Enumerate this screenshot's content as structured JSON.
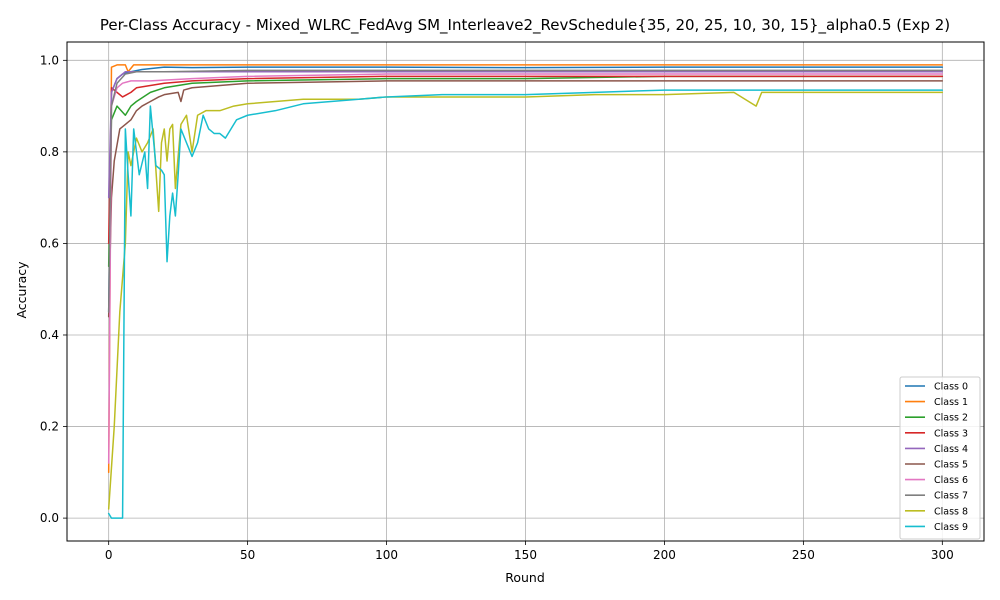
{
  "chart_data": {
    "type": "line",
    "title": "Per-Class Accuracy - Mixed_WLRC_FedAvg SM_Interleave2_RevSchedule{35, 20, 25, 10, 30, 15}_alpha0.5 (Exp 2)",
    "xlabel": "Round",
    "ylabel": "Accuracy",
    "xlim": [
      -15,
      315
    ],
    "ylim": [
      -0.05,
      1.04
    ],
    "xticks": [
      0,
      50,
      100,
      150,
      200,
      250,
      300
    ],
    "yticks": [
      0.0,
      0.2,
      0.4,
      0.6,
      0.8,
      1.0
    ],
    "xtick_labels": [
      "0",
      "50",
      "100",
      "150",
      "200",
      "250",
      "300"
    ],
    "ytick_labels": [
      "0.0",
      "0.2",
      "0.4",
      "0.6",
      "0.8",
      "1.0"
    ],
    "grid": true,
    "legend_position": "lower-right",
    "series": [
      {
        "name": "Class 0",
        "color": "#1f77b4",
        "points": [
          [
            0,
            0.45
          ],
          [
            1,
            0.93
          ],
          [
            3,
            0.96
          ],
          [
            5,
            0.97
          ],
          [
            8,
            0.975
          ],
          [
            12,
            0.98
          ],
          [
            20,
            0.985
          ],
          [
            30,
            0.984
          ],
          [
            50,
            0.985
          ],
          [
            100,
            0.985
          ],
          [
            150,
            0.984
          ],
          [
            200,
            0.985
          ],
          [
            250,
            0.985
          ],
          [
            300,
            0.985
          ]
        ]
      },
      {
        "name": "Class 1",
        "color": "#ff7f0e",
        "points": [
          [
            0,
            0.1
          ],
          [
            1,
            0.985
          ],
          [
            3,
            0.99
          ],
          [
            6,
            0.99
          ],
          [
            7,
            0.975
          ],
          [
            9,
            0.99
          ],
          [
            20,
            0.99
          ],
          [
            50,
            0.99
          ],
          [
            100,
            0.99
          ],
          [
            150,
            0.99
          ],
          [
            200,
            0.99
          ],
          [
            250,
            0.99
          ],
          [
            300,
            0.99
          ]
        ]
      },
      {
        "name": "Class 2",
        "color": "#2ca02c",
        "points": [
          [
            0,
            0.55
          ],
          [
            1,
            0.87
          ],
          [
            3,
            0.9
          ],
          [
            6,
            0.88
          ],
          [
            8,
            0.9
          ],
          [
            10,
            0.91
          ],
          [
            15,
            0.93
          ],
          [
            20,
            0.94
          ],
          [
            30,
            0.95
          ],
          [
            50,
            0.955
          ],
          [
            100,
            0.96
          ],
          [
            150,
            0.96
          ],
          [
            200,
            0.965
          ],
          [
            250,
            0.965
          ],
          [
            300,
            0.965
          ]
        ]
      },
      {
        "name": "Class 3",
        "color": "#d62728",
        "points": [
          [
            0,
            0.6
          ],
          [
            1,
            0.94
          ],
          [
            3,
            0.93
          ],
          [
            5,
            0.92
          ],
          [
            8,
            0.93
          ],
          [
            10,
            0.94
          ],
          [
            20,
            0.95
          ],
          [
            30,
            0.955
          ],
          [
            50,
            0.96
          ],
          [
            100,
            0.965
          ],
          [
            150,
            0.965
          ],
          [
            200,
            0.965
          ],
          [
            250,
            0.965
          ],
          [
            300,
            0.965
          ]
        ]
      },
      {
        "name": "Class 4",
        "color": "#9467bd",
        "points": [
          [
            0,
            0.7
          ],
          [
            1,
            0.93
          ],
          [
            3,
            0.96
          ],
          [
            6,
            0.975
          ],
          [
            10,
            0.975
          ],
          [
            20,
            0.975
          ],
          [
            50,
            0.975
          ],
          [
            100,
            0.975
          ],
          [
            150,
            0.975
          ],
          [
            200,
            0.975
          ],
          [
            250,
            0.975
          ],
          [
            300,
            0.975
          ]
        ]
      },
      {
        "name": "Class 5",
        "color": "#8c564b",
        "points": [
          [
            0,
            0.44
          ],
          [
            1,
            0.7
          ],
          [
            2,
            0.78
          ],
          [
            4,
            0.85
          ],
          [
            6,
            0.86
          ],
          [
            8,
            0.87
          ],
          [
            10,
            0.89
          ],
          [
            12,
            0.9
          ],
          [
            15,
            0.91
          ],
          [
            18,
            0.92
          ],
          [
            20,
            0.925
          ],
          [
            25,
            0.93
          ],
          [
            26,
            0.91
          ],
          [
            27,
            0.935
          ],
          [
            30,
            0.94
          ],
          [
            40,
            0.945
          ],
          [
            50,
            0.95
          ],
          [
            100,
            0.955
          ],
          [
            150,
            0.955
          ],
          [
            200,
            0.955
          ],
          [
            250,
            0.955
          ],
          [
            300,
            0.955
          ]
        ]
      },
      {
        "name": "Class 6",
        "color": "#e377c2",
        "points": [
          [
            0,
            0.12
          ],
          [
            1,
            0.9
          ],
          [
            3,
            0.94
          ],
          [
            5,
            0.95
          ],
          [
            8,
            0.955
          ],
          [
            15,
            0.955
          ],
          [
            30,
            0.96
          ],
          [
            50,
            0.965
          ],
          [
            100,
            0.97
          ],
          [
            150,
            0.97
          ],
          [
            200,
            0.97
          ],
          [
            250,
            0.97
          ],
          [
            300,
            0.97
          ]
        ]
      },
      {
        "name": "Class 7",
        "color": "#7f7f7f",
        "points": [
          [
            0,
            0.45
          ],
          [
            1,
            0.9
          ],
          [
            3,
            0.95
          ],
          [
            6,
            0.97
          ],
          [
            10,
            0.975
          ],
          [
            20,
            0.975
          ],
          [
            50,
            0.978
          ],
          [
            100,
            0.978
          ],
          [
            150,
            0.978
          ],
          [
            200,
            0.978
          ],
          [
            250,
            0.978
          ],
          [
            300,
            0.978
          ]
        ]
      },
      {
        "name": "Class 8",
        "color": "#bcbd22",
        "points": [
          [
            0,
            0.02
          ],
          [
            2,
            0.2
          ],
          [
            4,
            0.45
          ],
          [
            6,
            0.6
          ],
          [
            7,
            0.8
          ],
          [
            8,
            0.77
          ],
          [
            10,
            0.83
          ],
          [
            12,
            0.8
          ],
          [
            14,
            0.82
          ],
          [
            16,
            0.85
          ],
          [
            18,
            0.67
          ],
          [
            19,
            0.82
          ],
          [
            20,
            0.85
          ],
          [
            21,
            0.78
          ],
          [
            22,
            0.85
          ],
          [
            23,
            0.86
          ],
          [
            24,
            0.72
          ],
          [
            26,
            0.86
          ],
          [
            28,
            0.88
          ],
          [
            30,
            0.8
          ],
          [
            32,
            0.88
          ],
          [
            35,
            0.89
          ],
          [
            40,
            0.89
          ],
          [
            45,
            0.9
          ],
          [
            50,
            0.905
          ],
          [
            60,
            0.91
          ],
          [
            70,
            0.915
          ],
          [
            80,
            0.915
          ],
          [
            90,
            0.915
          ],
          [
            100,
            0.92
          ],
          [
            120,
            0.92
          ],
          [
            140,
            0.92
          ],
          [
            150,
            0.92
          ],
          [
            175,
            0.925
          ],
          [
            200,
            0.925
          ],
          [
            225,
            0.93
          ],
          [
            233,
            0.9
          ],
          [
            235,
            0.93
          ],
          [
            250,
            0.93
          ],
          [
            275,
            0.93
          ],
          [
            300,
            0.93
          ]
        ]
      },
      {
        "name": "Class 9",
        "color": "#17becf",
        "points": [
          [
            0,
            0.01
          ],
          [
            1,
            0.0
          ],
          [
            3,
            0.0
          ],
          [
            5,
            0.0
          ],
          [
            6,
            0.85
          ],
          [
            7,
            0.75
          ],
          [
            8,
            0.66
          ],
          [
            9,
            0.85
          ],
          [
            11,
            0.75
          ],
          [
            13,
            0.8
          ],
          [
            14,
            0.72
          ],
          [
            15,
            0.9
          ],
          [
            17,
            0.77
          ],
          [
            19,
            0.76
          ],
          [
            20,
            0.75
          ],
          [
            21,
            0.56
          ],
          [
            22,
            0.66
          ],
          [
            23,
            0.71
          ],
          [
            24,
            0.66
          ],
          [
            25,
            0.75
          ],
          [
            26,
            0.85
          ],
          [
            28,
            0.82
          ],
          [
            30,
            0.79
          ],
          [
            32,
            0.82
          ],
          [
            34,
            0.88
          ],
          [
            36,
            0.85
          ],
          [
            38,
            0.84
          ],
          [
            40,
            0.84
          ],
          [
            42,
            0.83
          ],
          [
            44,
            0.85
          ],
          [
            46,
            0.87
          ],
          [
            50,
            0.88
          ],
          [
            60,
            0.89
          ],
          [
            70,
            0.905
          ],
          [
            80,
            0.91
          ],
          [
            90,
            0.915
          ],
          [
            100,
            0.92
          ],
          [
            120,
            0.925
          ],
          [
            150,
            0.925
          ],
          [
            175,
            0.93
          ],
          [
            200,
            0.935
          ],
          [
            225,
            0.935
          ],
          [
            250,
            0.935
          ],
          [
            275,
            0.935
          ],
          [
            300,
            0.935
          ]
        ]
      }
    ]
  }
}
